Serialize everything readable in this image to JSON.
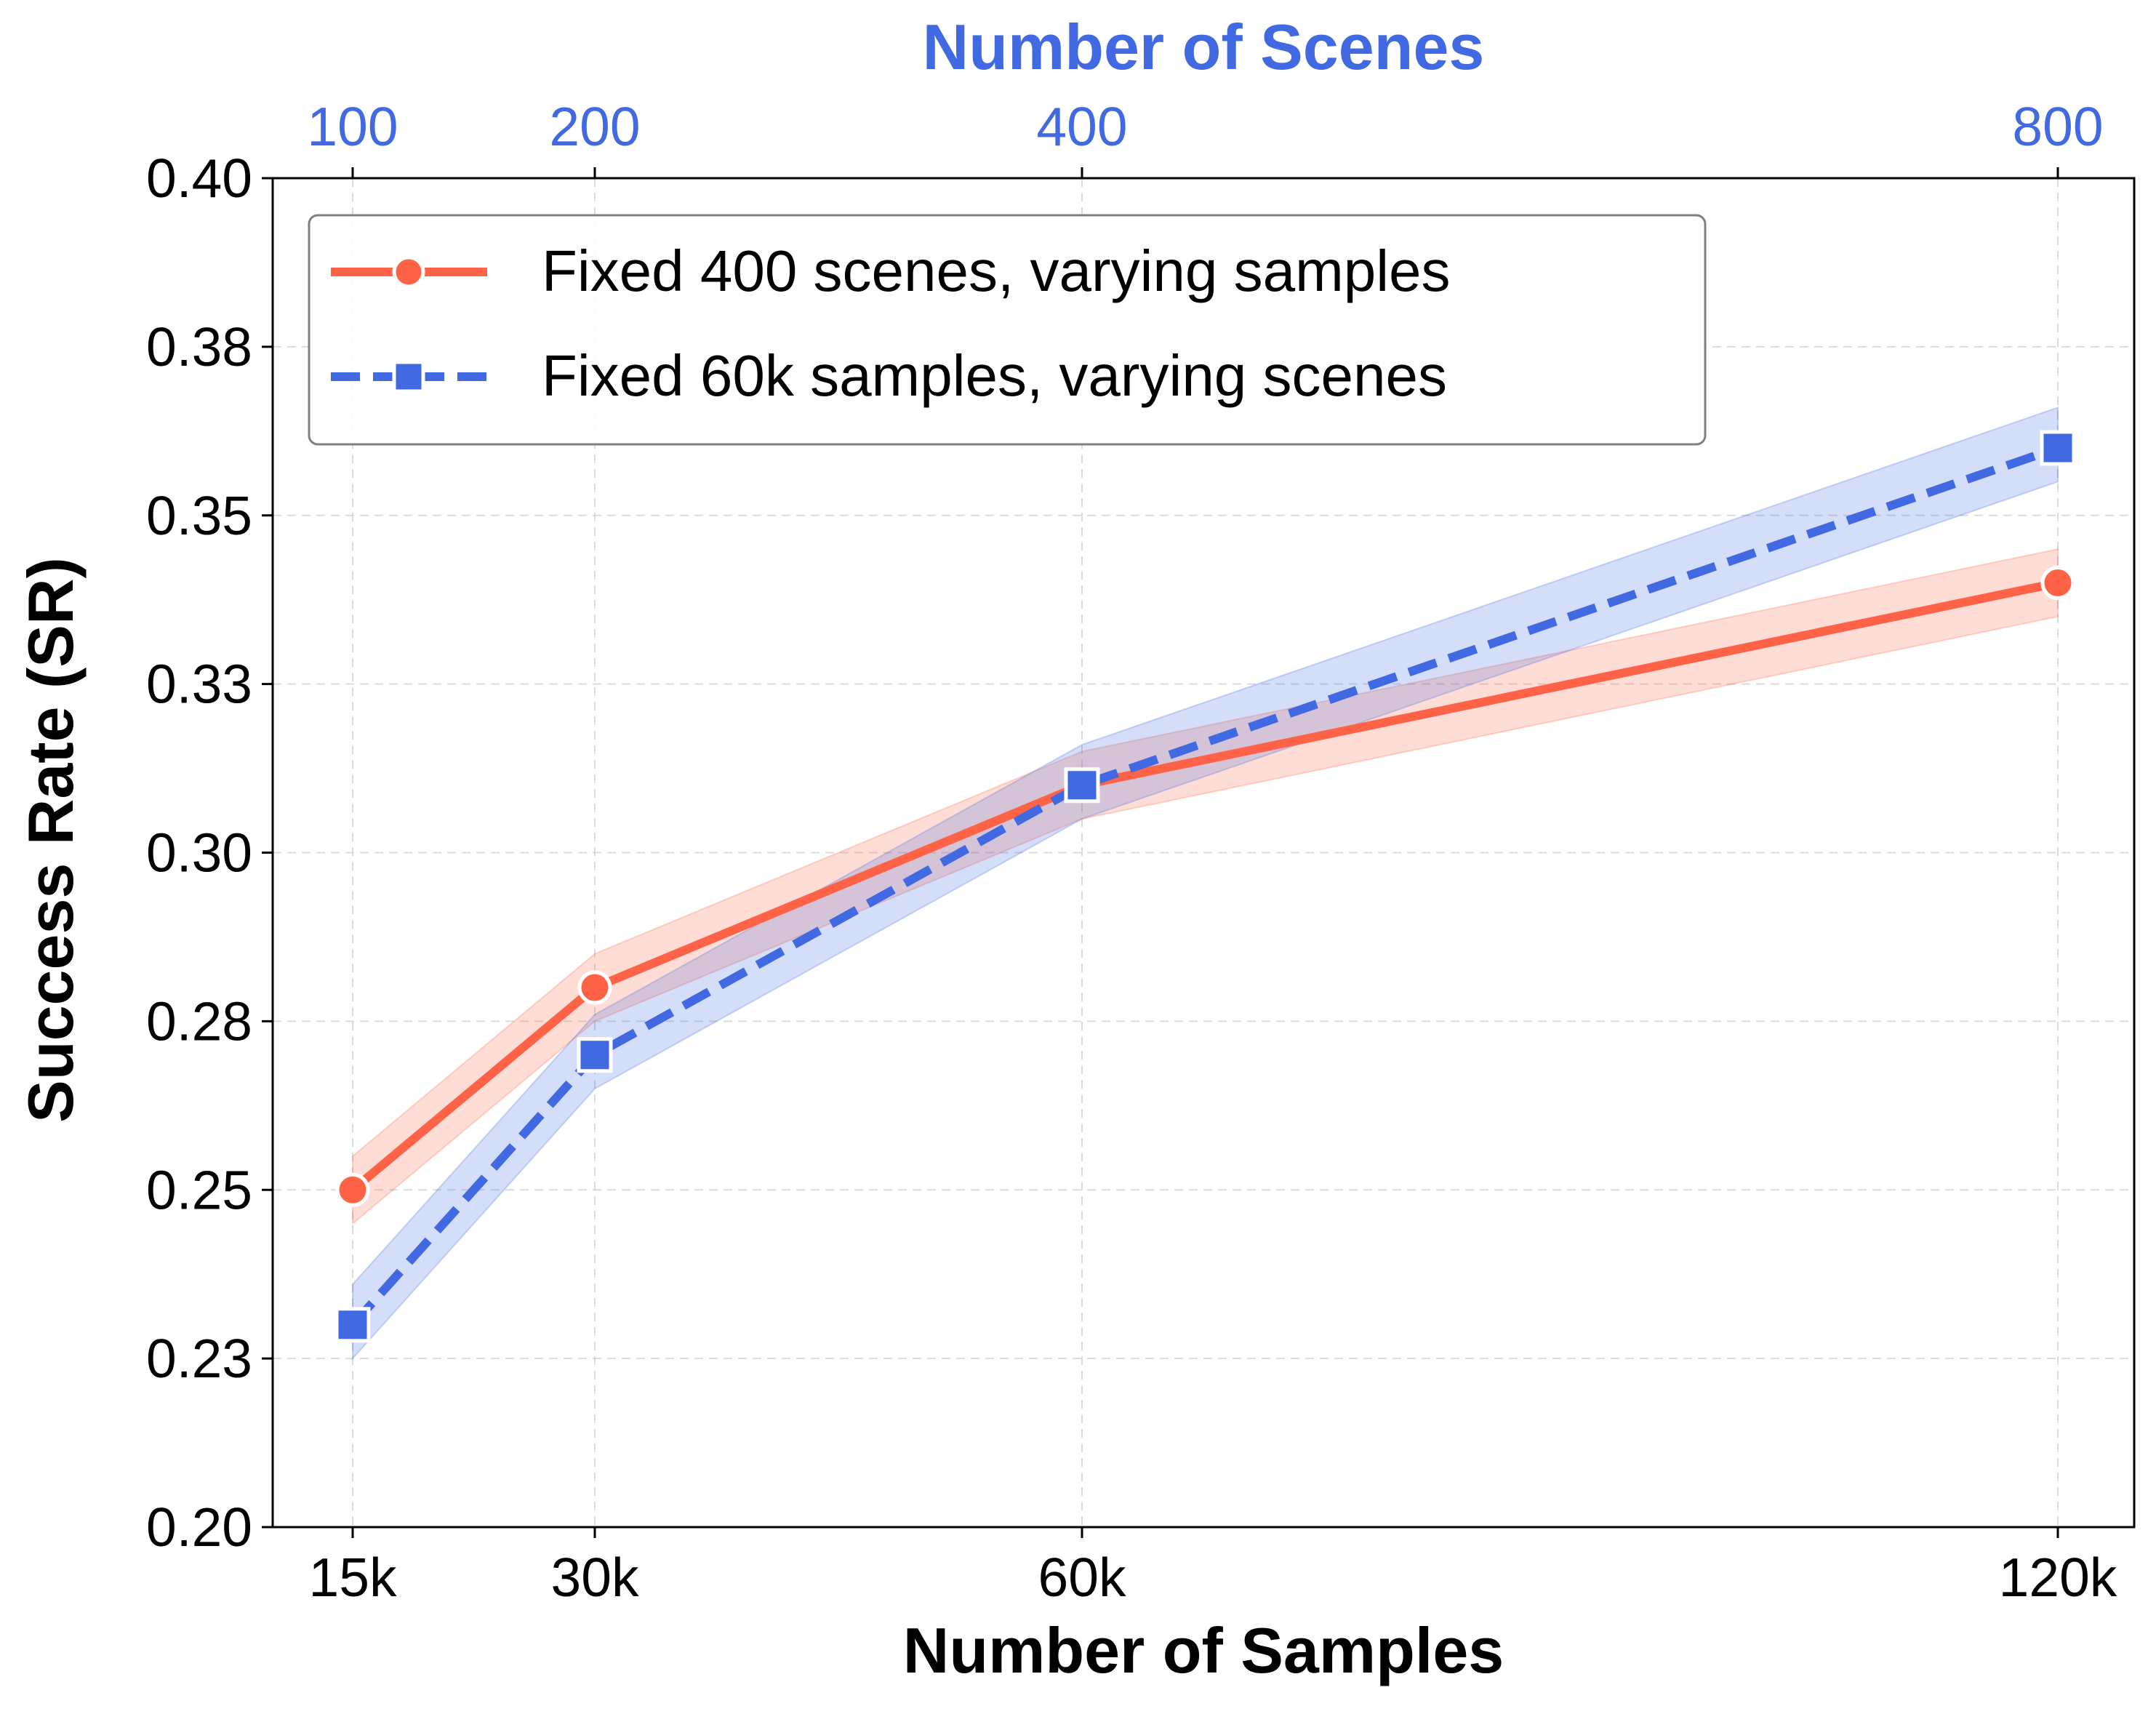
{
  "chart_data": {
    "type": "line",
    "xlabel": "Number of Samples",
    "x2label": "Number of Scenes",
    "ylabel": "Success Rate (SR)",
    "x": [
      15,
      30,
      60,
      120
    ],
    "x_tick_labels": [
      "15k",
      "30k",
      "60k",
      "120k"
    ],
    "x2_tick_labels": [
      "100",
      "200",
      "400",
      "800"
    ],
    "y_ticks": [
      0.2,
      0.225,
      0.25,
      0.275,
      0.3,
      0.325,
      0.35,
      0.375,
      0.4
    ],
    "y_tick_labels": [
      "0.20",
      "0.23",
      "0.25",
      "0.28",
      "0.30",
      "0.33",
      "0.35",
      "0.38",
      "0.40"
    ],
    "ylim": [
      0.2,
      0.4
    ],
    "grid": true,
    "legend_position": "top-left",
    "series": [
      {
        "name": "Fixed 400 scenes, varying samples",
        "color": "#FF6347",
        "line_style": "solid",
        "marker": "circle",
        "values": [
          0.25,
          0.28,
          0.31,
          0.34
        ],
        "band_lower": [
          0.245,
          0.275,
          0.305,
          0.335
        ],
        "band_upper": [
          0.255,
          0.285,
          0.315,
          0.345
        ]
      },
      {
        "name": "Fixed 60k samples, varying scenes",
        "color": "#4169E1",
        "line_style": "dashed",
        "marker": "square",
        "values": [
          0.23,
          0.27,
          0.31,
          0.36
        ],
        "band_lower": [
          0.225,
          0.265,
          0.305,
          0.355
        ],
        "band_upper": [
          0.236,
          0.276,
          0.316,
          0.366
        ]
      }
    ]
  }
}
